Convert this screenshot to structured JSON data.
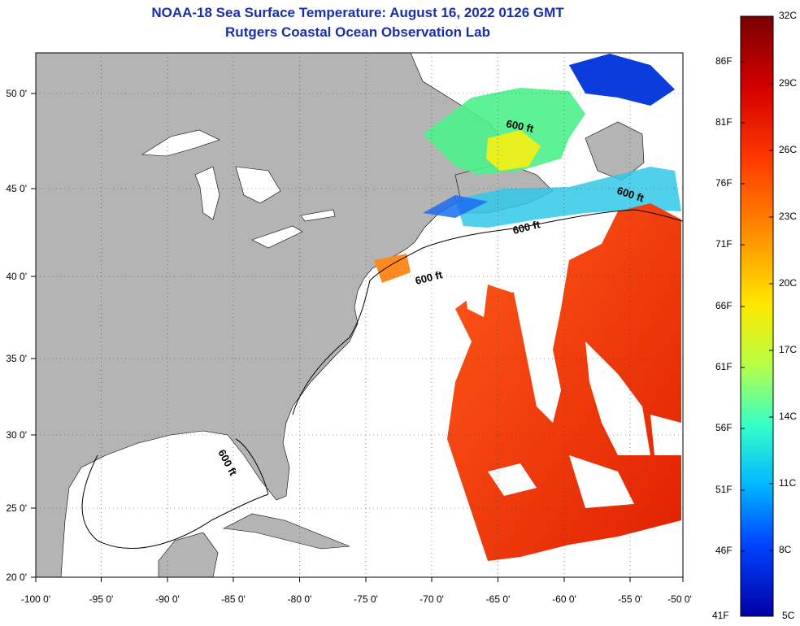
{
  "title": "NOAA-18 Sea Surface Temperature:  August 16, 2022 0126 GMT",
  "subtitle": "Rutgers Coastal Ocean Observation Lab",
  "map": {
    "lon_ticks": [
      "-100 0'",
      "-95 0'",
      "-90 0'",
      "-85 0'",
      "-80 0'",
      "-75 0'",
      "-70 0'",
      "-65 0'",
      "-60 0'",
      "-55 0'",
      "-50 0'"
    ],
    "lat_ticks": [
      "50 0'",
      "45 0'",
      "40 0'",
      "35 0'",
      "30 0'",
      "25 0'",
      "20 0'"
    ],
    "contour_labels": [
      "600 ft",
      "600 ft",
      "600 ft",
      "600 ft",
      "600 ft"
    ],
    "land_color": "#b4b4b4",
    "cloud_color": "#ffffff",
    "grid": "dotted"
  },
  "colorbar": {
    "celsius_labels": [
      "32C",
      "29C",
      "26C",
      "23C",
      "20C",
      "17C",
      "14C",
      "11C",
      "8C",
      "5C"
    ],
    "fahrenheit_labels": [
      "86F",
      "81F",
      "76F",
      "71F",
      "66F",
      "61F",
      "56F",
      "51F",
      "46F",
      "41F"
    ],
    "range_c": [
      5,
      32
    ],
    "colors": [
      "#7a0000",
      "#d40000",
      "#ff3a00",
      "#ff8c00",
      "#ffe800",
      "#b8ff45",
      "#37ffc6",
      "#00b8ff",
      "#0044ff",
      "#0000a6"
    ]
  }
}
